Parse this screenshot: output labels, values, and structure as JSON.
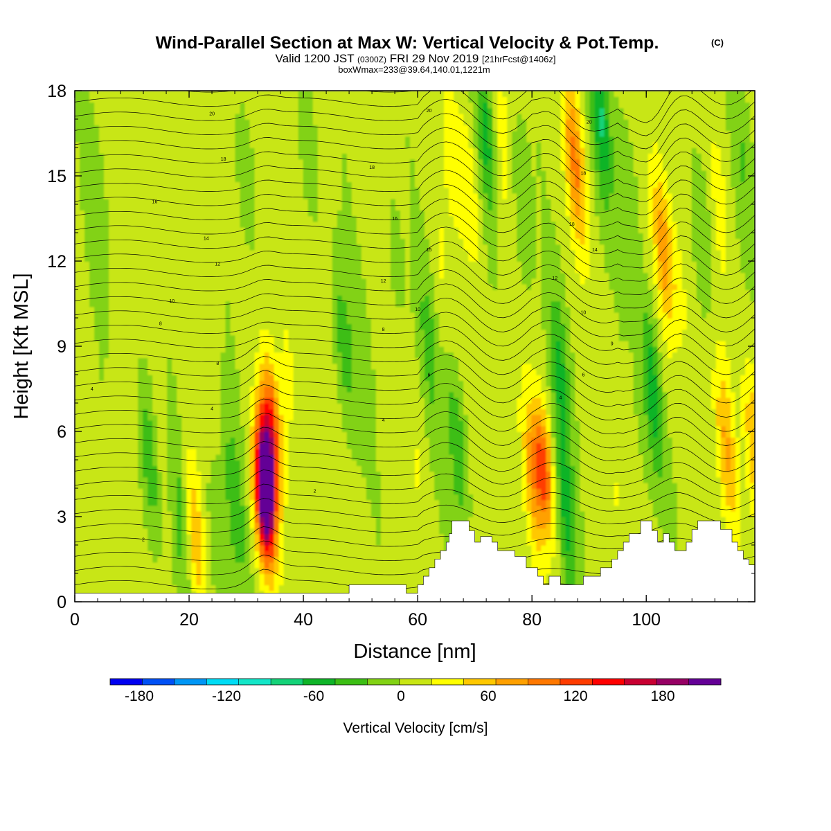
{
  "header": {
    "title": "Wind-Parallel Section at Max W: Vertical Velocity & Pot.Temp.",
    "title_mark": "(C)",
    "valid_prefix": "Valid 1200 JST",
    "valid_utc": "(0300Z)",
    "valid_date": "FRI 29 Nov 2019",
    "valid_fcst": "[21hrFcst@1406z]",
    "boxline": "boxWmax=233@39.64,140.01,1221m"
  },
  "chart_data": {
    "type": "heatmap",
    "xlabel": "Distance [nm]",
    "ylabel": "Height [Kft MSL]",
    "xlim": [
      0,
      119
    ],
    "ylim": [
      0,
      18
    ],
    "x_ticks": [
      "0",
      "20",
      "40",
      "60",
      "80",
      "100"
    ],
    "y_ticks": [
      "0",
      "3",
      "6",
      "9",
      "12",
      "15",
      "18"
    ],
    "x_tick_values": [
      0,
      20,
      40,
      60,
      80,
      100
    ],
    "y_tick_values": [
      0,
      3,
      6,
      9,
      12,
      15,
      18
    ],
    "colorbar": {
      "label": "Vertical Velocity [cm/s]",
      "labels": [
        "-180",
        "-120",
        "-60",
        "0",
        "60",
        "120",
        "180"
      ],
      "label_values": [
        -180,
        -120,
        -60,
        0,
        60,
        120,
        180
      ],
      "min": -200,
      "max": 220,
      "colors": [
        "#0000f0",
        "#0050f5",
        "#0096f5",
        "#00dcf5",
        "#14e6c8",
        "#14d278",
        "#0fb428",
        "#3cbe14",
        "#82d214",
        "#c8e614",
        "#ffff00",
        "#ffc800",
        "#ffa000",
        "#ff7800",
        "#ff3c00",
        "#ff0000",
        "#c80032",
        "#960064",
        "#640096"
      ]
    },
    "w_cells_cm_s": [
      {
        "x": 33.5,
        "y": 4.5,
        "w": 200
      },
      {
        "x": 33.0,
        "y": 3.0,
        "w": 130
      },
      {
        "x": 34.5,
        "y": 6.3,
        "w": 100
      },
      {
        "x": 37.5,
        "y": 8.2,
        "w": 25
      },
      {
        "x": 21.0,
        "y": 2.3,
        "w": 60
      },
      {
        "x": 15.5,
        "y": 5.5,
        "w": 15
      },
      {
        "x": 13.0,
        "y": 5.0,
        "w": -50
      },
      {
        "x": 18.5,
        "y": 3.0,
        "w": -40
      },
      {
        "x": 28.0,
        "y": 3.5,
        "w": -45
      },
      {
        "x": 25.0,
        "y": 2.0,
        "w": -30
      },
      {
        "x": 47.0,
        "y": 9.0,
        "w": -40
      },
      {
        "x": 50.0,
        "y": 8.5,
        "w": -15
      },
      {
        "x": 62.0,
        "y": 9.0,
        "w": -35
      },
      {
        "x": 60.0,
        "y": 5.0,
        "w": 15
      },
      {
        "x": 67.0,
        "y": 5.5,
        "w": -50
      },
      {
        "x": 66.0,
        "y": 16.0,
        "w": 25
      },
      {
        "x": 69.0,
        "y": 14.5,
        "w": 40
      },
      {
        "x": 72.0,
        "y": 16.5,
        "w": -60
      },
      {
        "x": 75.0,
        "y": 16.0,
        "w": 25
      },
      {
        "x": 78.0,
        "y": 14.0,
        "w": -30
      },
      {
        "x": 82.0,
        "y": 4.7,
        "w": 110
      },
      {
        "x": 80.0,
        "y": 4.3,
        "w": 55
      },
      {
        "x": 86.0,
        "y": 3.0,
        "w": -55
      },
      {
        "x": 85.0,
        "y": 8.0,
        "w": -50
      },
      {
        "x": 87.5,
        "y": 15.5,
        "w": 85
      },
      {
        "x": 92.0,
        "y": 17.0,
        "w": -70
      },
      {
        "x": 97.0,
        "y": 14.0,
        "w": -30
      },
      {
        "x": 101.0,
        "y": 7.5,
        "w": -70
      },
      {
        "x": 103.0,
        "y": 12.5,
        "w": 75
      },
      {
        "x": 106.0,
        "y": 11.0,
        "w": 25
      },
      {
        "x": 110.0,
        "y": 13.0,
        "w": -30
      },
      {
        "x": 113.0,
        "y": 14.0,
        "w": 25
      },
      {
        "x": 117.0,
        "y": 15.5,
        "w": -25
      },
      {
        "x": 114.0,
        "y": 5.5,
        "w": 60
      },
      {
        "x": 119.0,
        "y": 5.5,
        "w": 65
      },
      {
        "x": 108.0,
        "y": 4.0,
        "w": 15
      },
      {
        "x": 104.0,
        "y": 3.5,
        "w": -20
      },
      {
        "x": 95.0,
        "y": 4.0,
        "w": 15
      },
      {
        "x": 4.0,
        "y": 14.0,
        "w": -20
      },
      {
        "x": 30.0,
        "y": 15.0,
        "w": -25
      },
      {
        "x": 41.0,
        "y": 16.0,
        "w": -25
      },
      {
        "x": 56.0,
        "y": 12.0,
        "w": -15
      },
      {
        "x": 64.0,
        "y": 12.0,
        "w": 15
      }
    ],
    "terrain_kft": [
      [
        0,
        0.3
      ],
      [
        48,
        0.3
      ],
      [
        48,
        0.6
      ],
      [
        58,
        0.6
      ],
      [
        58,
        0.3
      ],
      [
        60,
        0.3
      ],
      [
        60,
        0.6
      ],
      [
        61,
        0.6
      ],
      [
        61,
        0.9
      ],
      [
        62,
        0.9
      ],
      [
        62,
        1.2
      ],
      [
        63,
        1.2
      ],
      [
        63,
        1.5
      ],
      [
        64,
        1.5
      ],
      [
        64,
        1.8
      ],
      [
        65,
        1.8
      ],
      [
        65,
        2.1
      ],
      [
        65.5,
        2.1
      ],
      [
        65.5,
        2.4
      ],
      [
        66,
        2.4
      ],
      [
        66,
        2.85
      ],
      [
        69,
        2.85
      ],
      [
        69,
        2.5
      ],
      [
        70,
        2.5
      ],
      [
        70,
        2.1
      ],
      [
        71,
        2.1
      ],
      [
        71,
        2.3
      ],
      [
        73,
        2.3
      ],
      [
        73,
        2.1
      ],
      [
        74,
        2.1
      ],
      [
        74,
        1.8
      ],
      [
        77,
        1.8
      ],
      [
        77,
        1.6
      ],
      [
        79,
        1.6
      ],
      [
        79,
        1.2
      ],
      [
        81,
        1.2
      ],
      [
        81,
        0.9
      ],
      [
        82,
        0.9
      ],
      [
        82,
        0.6
      ],
      [
        83,
        0.6
      ],
      [
        83,
        0.9
      ],
      [
        85,
        0.9
      ],
      [
        85,
        0.6
      ],
      [
        89,
        0.6
      ],
      [
        89,
        0.9
      ],
      [
        92,
        0.9
      ],
      [
        92,
        1.2
      ],
      [
        94,
        1.2
      ],
      [
        94,
        1.5
      ],
      [
        95,
        1.5
      ],
      [
        95,
        1.8
      ],
      [
        96,
        1.8
      ],
      [
        96,
        2.1
      ],
      [
        97,
        2.1
      ],
      [
        97,
        2.4
      ],
      [
        99,
        2.4
      ],
      [
        99,
        2.85
      ],
      [
        101,
        2.85
      ],
      [
        101,
        2.5
      ],
      [
        102,
        2.5
      ],
      [
        102,
        2.1
      ],
      [
        103,
        2.1
      ],
      [
        103,
        2.4
      ],
      [
        104,
        2.4
      ],
      [
        104,
        2.1
      ],
      [
        105,
        2.1
      ],
      [
        105,
        1.8
      ],
      [
        107,
        1.8
      ],
      [
        107,
        2.1
      ],
      [
        108,
        2.1
      ],
      [
        108,
        2.55
      ],
      [
        109,
        2.55
      ],
      [
        109,
        2.85
      ],
      [
        113,
        2.85
      ],
      [
        113,
        2.55
      ],
      [
        115,
        2.55
      ],
      [
        115,
        2.1
      ],
      [
        116,
        2.1
      ],
      [
        116,
        1.8
      ],
      [
        117,
        1.8
      ],
      [
        117,
        1.5
      ],
      [
        118,
        1.5
      ],
      [
        118,
        1.3
      ],
      [
        119,
        1.3
      ],
      [
        119,
        0
      ]
    ],
    "theta_contour_labels": [
      {
        "text": "20",
        "x": 24,
        "y": 17.2
      },
      {
        "text": "18",
        "x": 26,
        "y": 15.6
      },
      {
        "text": "16",
        "x": 14,
        "y": 14.1
      },
      {
        "text": "14",
        "x": 23,
        "y": 12.8
      },
      {
        "text": "12",
        "x": 25,
        "y": 11.9
      },
      {
        "text": "10",
        "x": 17,
        "y": 10.6
      },
      {
        "text": "8",
        "x": 15,
        "y": 9.8
      },
      {
        "text": "8",
        "x": 25,
        "y": 8.4
      },
      {
        "text": "4",
        "x": 3,
        "y": 7.5
      },
      {
        "text": "4",
        "x": 24,
        "y": 6.8
      },
      {
        "text": "2",
        "x": 12,
        "y": 2.2
      },
      {
        "text": "2",
        "x": 42,
        "y": 3.9
      },
      {
        "text": "4",
        "x": 54,
        "y": 6.4
      },
      {
        "text": "6",
        "x": 62,
        "y": 8.0
      },
      {
        "text": "8",
        "x": 54,
        "y": 9.6
      },
      {
        "text": "10",
        "x": 60,
        "y": 10.3
      },
      {
        "text": "12",
        "x": 54,
        "y": 11.3
      },
      {
        "text": "15",
        "x": 62,
        "y": 12.4
      },
      {
        "text": "16",
        "x": 56,
        "y": 13.5
      },
      {
        "text": "18",
        "x": 52,
        "y": 15.3
      },
      {
        "text": "20",
        "x": 62,
        "y": 17.3
      },
      {
        "text": "20",
        "x": 90,
        "y": 16.9
      },
      {
        "text": "18",
        "x": 89,
        "y": 15.1
      },
      {
        "text": "18",
        "x": 87,
        "y": 13.3
      },
      {
        "text": "14",
        "x": 91,
        "y": 12.4
      },
      {
        "text": "12",
        "x": 84,
        "y": 11.4
      },
      {
        "text": "10",
        "x": 89,
        "y": 10.2
      },
      {
        "text": "9",
        "x": 94,
        "y": 9.1
      },
      {
        "text": "6",
        "x": 89,
        "y": 8.0
      },
      {
        "text": "4",
        "x": 85,
        "y": 7.2
      }
    ]
  }
}
